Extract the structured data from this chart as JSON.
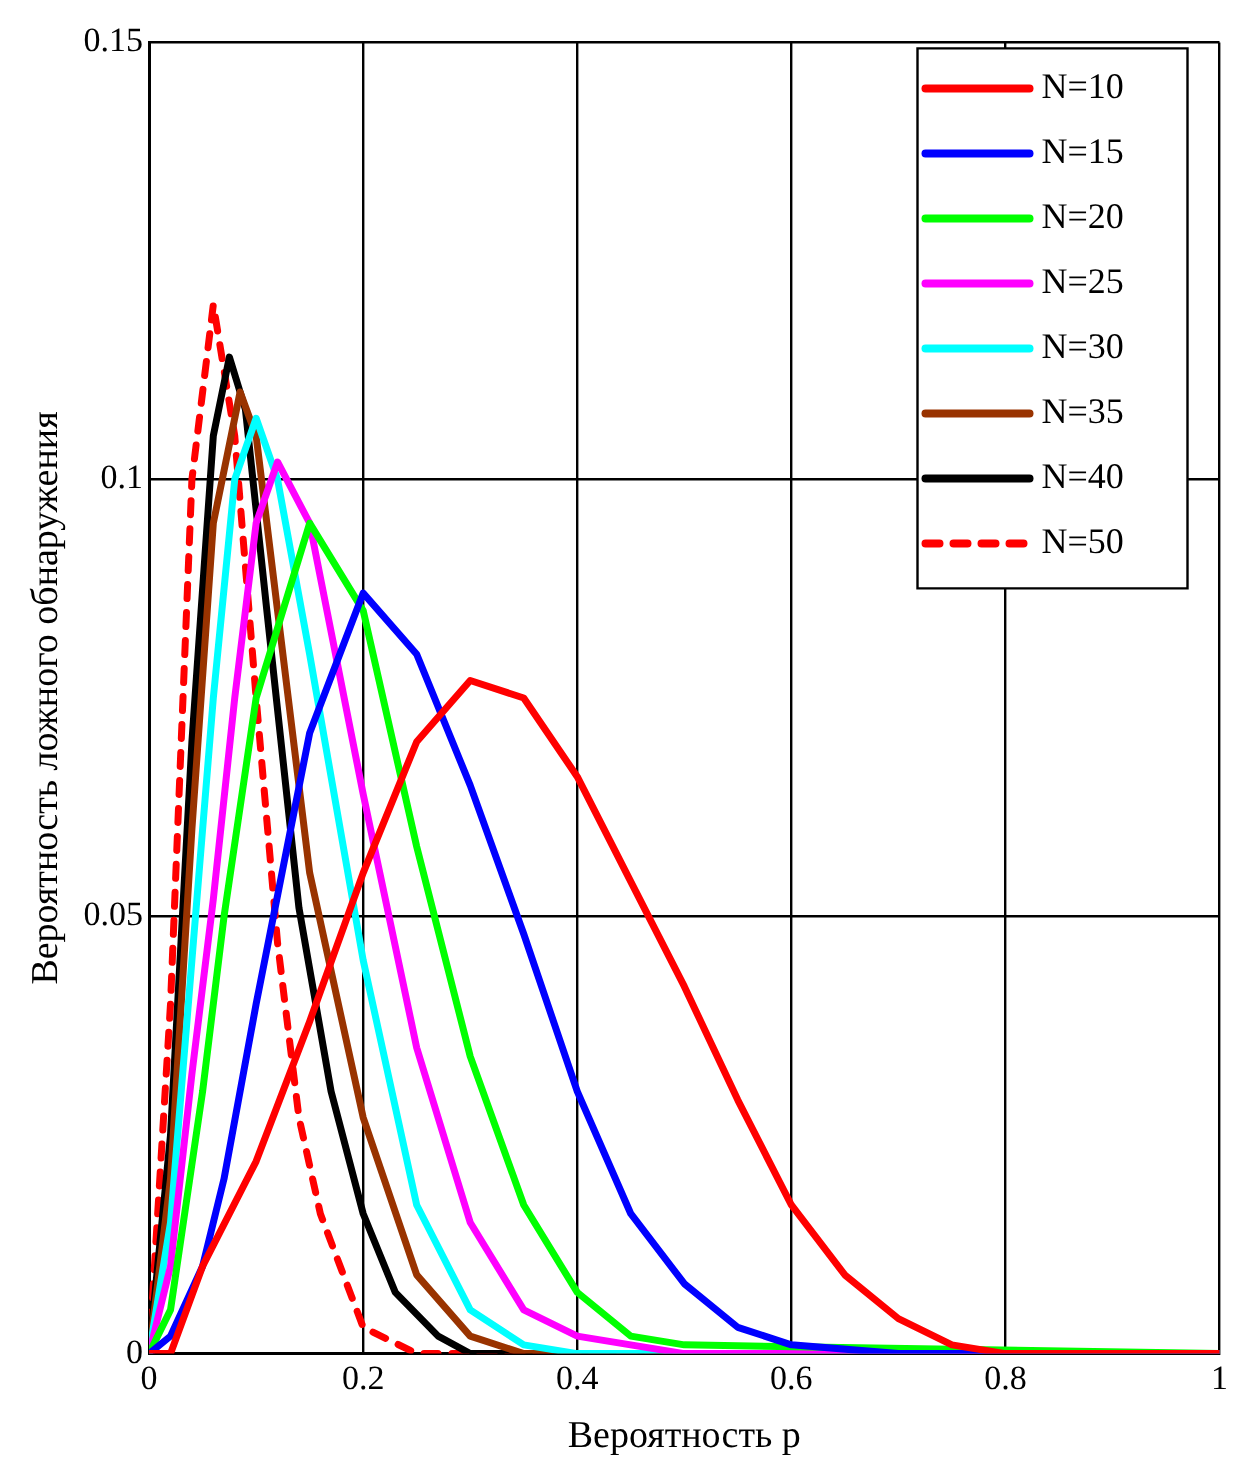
{
  "chart_data": {
    "type": "line",
    "xlabel": "Вероятность p",
    "ylabel": "Вероятность ложного обнаружения",
    "xlim": [
      0,
      1
    ],
    "ylim": [
      0,
      0.15
    ],
    "xticks": [
      0,
      0.2,
      0.4,
      0.6,
      0.8,
      1
    ],
    "yticks": [
      0,
      0.05,
      0.1,
      0.15
    ],
    "grid": true,
    "legend": "top right",
    "marker": "none",
    "series": [
      {
        "name": "N=10",
        "color": "#ff0000",
        "x": [
          0,
          0.02,
          0.05,
          0.1,
          0.15,
          0.2,
          0.25,
          0.3,
          0.35,
          0.4,
          0.45,
          0.5,
          0.55,
          0.6,
          0.65,
          0.7,
          0.75,
          0.8,
          1
        ],
        "values": [
          0,
          0,
          0.01,
          0.022,
          0.038,
          0.055,
          0.07,
          0.077,
          0.075,
          0.066,
          0.054,
          0.042,
          0.029,
          0.017,
          0.009,
          0.004,
          0.001,
          0,
          0
        ]
      },
      {
        "name": "N=15",
        "color": "#0000ff",
        "x": [
          0,
          0.02,
          0.05,
          0.07,
          0.1,
          0.15,
          0.2,
          0.25,
          0.3,
          0.35,
          0.4,
          0.45,
          0.5,
          0.55,
          0.6,
          0.7,
          1
        ],
        "values": [
          0,
          0.002,
          0.01,
          0.02,
          0.04,
          0.071,
          0.087,
          0.08,
          0.065,
          0.048,
          0.03,
          0.016,
          0.008,
          0.003,
          0.001,
          0,
          0
        ]
      },
      {
        "name": "N=20",
        "color": "#00ff00",
        "x": [
          0,
          0.02,
          0.05,
          0.07,
          0.1,
          0.15,
          0.2,
          0.25,
          0.3,
          0.35,
          0.4,
          0.45,
          0.5,
          1
        ],
        "values": [
          0,
          0.005,
          0.03,
          0.05,
          0.075,
          0.095,
          0.085,
          0.058,
          0.034,
          0.017,
          0.007,
          0.002,
          0.001,
          0
        ]
      },
      {
        "name": "N=25",
        "color": "#ff00ff",
        "x": [
          0,
          0.02,
          0.04,
          0.06,
          0.08,
          0.1,
          0.12,
          0.15,
          0.2,
          0.25,
          0.3,
          0.35,
          0.4,
          0.5,
          1
        ],
        "values": [
          0,
          0.01,
          0.032,
          0.052,
          0.075,
          0.095,
          0.102,
          0.095,
          0.064,
          0.035,
          0.015,
          0.005,
          0.002,
          0,
          0
        ]
      },
      {
        "name": "N=30",
        "color": "#00ffff",
        "x": [
          0,
          0.02,
          0.04,
          0.06,
          0.08,
          0.1,
          0.12,
          0.15,
          0.2,
          0.25,
          0.3,
          0.35,
          0.4,
          1
        ],
        "values": [
          0,
          0.015,
          0.045,
          0.075,
          0.1,
          0.107,
          0.1,
          0.08,
          0.045,
          0.017,
          0.005,
          0.001,
          0,
          0
        ]
      },
      {
        "name": "N=35",
        "color": "#993300",
        "x": [
          0,
          0.02,
          0.04,
          0.06,
          0.085,
          0.1,
          0.12,
          0.15,
          0.2,
          0.25,
          0.3,
          0.35,
          1
        ],
        "values": [
          0,
          0.02,
          0.06,
          0.095,
          0.11,
          0.105,
          0.085,
          0.055,
          0.027,
          0.009,
          0.002,
          0,
          0
        ]
      },
      {
        "name": "N=40",
        "color": "#000000",
        "x": [
          0,
          0.02,
          0.04,
          0.06,
          0.075,
          0.09,
          0.11,
          0.14,
          0.17,
          0.2,
          0.23,
          0.27,
          0.3,
          1
        ],
        "values": [
          0,
          0.025,
          0.07,
          0.105,
          0.114,
          0.108,
          0.085,
          0.051,
          0.03,
          0.016,
          0.007,
          0.002,
          0,
          0
        ]
      },
      {
        "name": "N=50",
        "color": "#ff0000",
        "line_style": "dashed",
        "x": [
          0,
          0.02,
          0.04,
          0.06,
          0.08,
          0.1,
          0.12,
          0.14,
          0.16,
          0.2,
          0.25,
          1
        ],
        "values": [
          0,
          0.04,
          0.1,
          0.12,
          0.105,
          0.075,
          0.047,
          0.027,
          0.016,
          0.003,
          0,
          0
        ]
      }
    ]
  }
}
